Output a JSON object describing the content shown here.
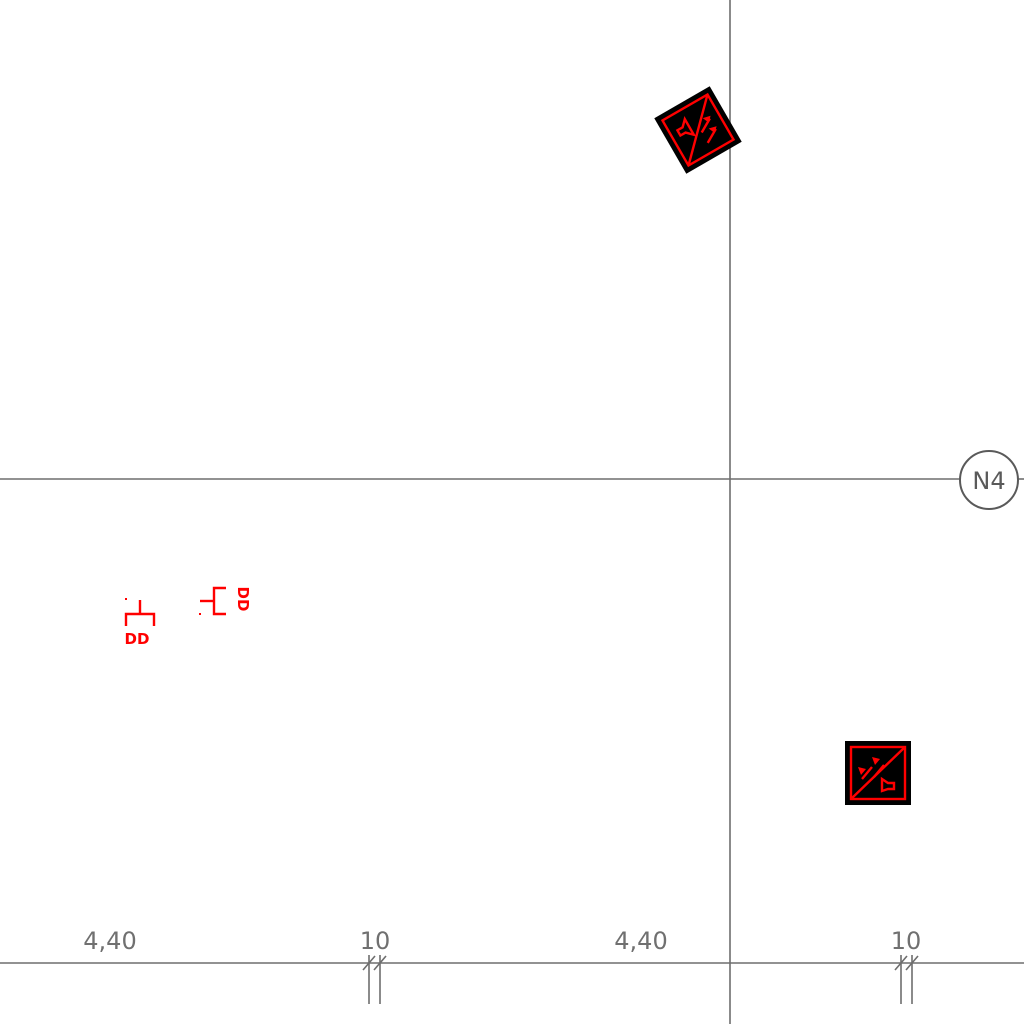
{
  "grid_axis": {
    "label": "N4"
  },
  "dimensions": [
    {
      "text": "4,40"
    },
    {
      "text": "10"
    },
    {
      "text": "4,40"
    },
    {
      "text": "10"
    }
  ],
  "symbols": {
    "device_tag_a": "DD",
    "device_tag_b": "DD",
    "device_box_color": "#000000",
    "symbol_color": "#ff0000"
  }
}
